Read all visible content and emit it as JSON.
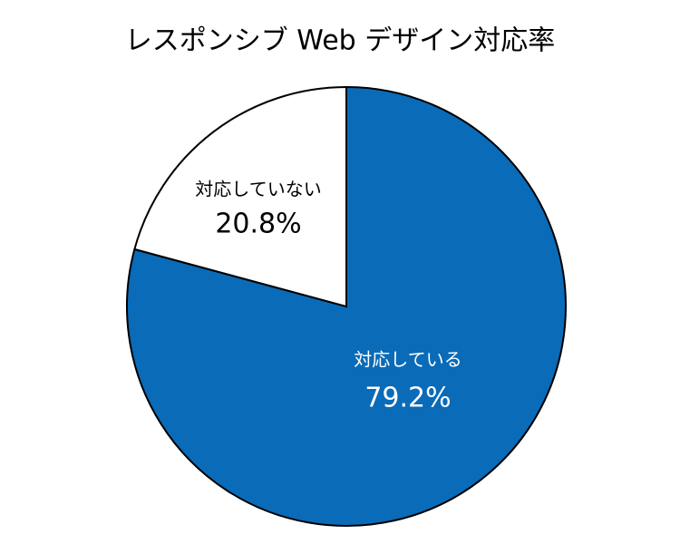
{
  "chart_data": {
    "type": "pie",
    "title": "レスポンシブ Web デザイン対応率",
    "categories": [
      "対応している",
      "対応していない"
    ],
    "values": [
      79.2,
      20.8
    ],
    "value_labels": [
      "79.2%",
      "20.8%"
    ],
    "colors": [
      "#0a6bb8",
      "#ffffff"
    ]
  }
}
